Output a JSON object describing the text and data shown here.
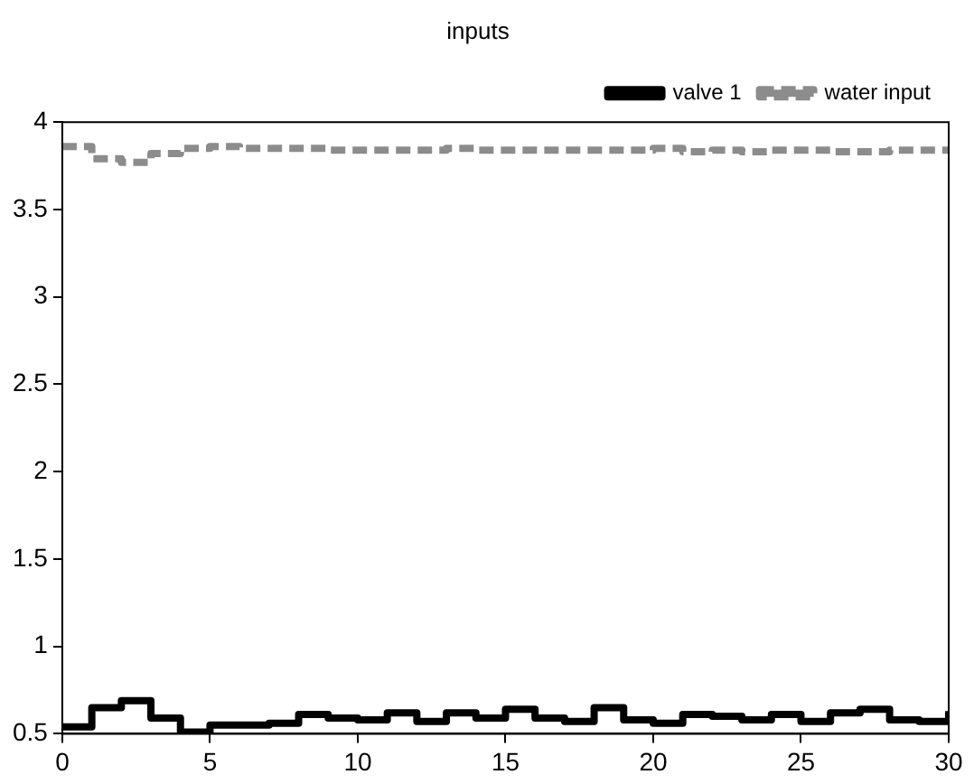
{
  "chart_data": {
    "type": "step",
    "title": "inputs",
    "x": [
      0,
      1,
      2,
      3,
      4,
      5,
      6,
      7,
      8,
      9,
      10,
      11,
      12,
      13,
      14,
      15,
      16,
      17,
      18,
      19,
      20,
      21,
      22,
      23,
      24,
      25,
      26,
      27,
      28,
      29,
      30
    ],
    "series": [
      {
        "name": "valve 1",
        "color": "#000000",
        "line_style": "solid",
        "values": [
          0.54,
          0.65,
          0.69,
          0.59,
          0.51,
          0.55,
          0.55,
          0.56,
          0.61,
          0.59,
          0.58,
          0.62,
          0.57,
          0.62,
          0.59,
          0.64,
          0.59,
          0.57,
          0.65,
          0.58,
          0.56,
          0.61,
          0.6,
          0.58,
          0.61,
          0.57,
          0.62,
          0.64,
          0.58,
          0.57,
          0.63
        ]
      },
      {
        "name": "water input",
        "color": "#8c8c8c",
        "line_style": "dashed",
        "values": [
          3.86,
          3.79,
          3.77,
          3.82,
          3.85,
          3.86,
          3.85,
          3.85,
          3.85,
          3.84,
          3.84,
          3.84,
          3.84,
          3.85,
          3.84,
          3.84,
          3.84,
          3.84,
          3.84,
          3.84,
          3.85,
          3.83,
          3.84,
          3.83,
          3.84,
          3.84,
          3.83,
          3.83,
          3.84,
          3.84,
          3.84
        ]
      }
    ],
    "xlim": [
      0,
      30
    ],
    "xticks": [
      0,
      5,
      10,
      15,
      20,
      25,
      30
    ],
    "ylim": [
      0.5,
      4
    ],
    "yticks": [
      0.5,
      1,
      1.5,
      2,
      2.5,
      3,
      3.5,
      4
    ],
    "grid": false,
    "legend": "top right",
    "marker": "none"
  }
}
